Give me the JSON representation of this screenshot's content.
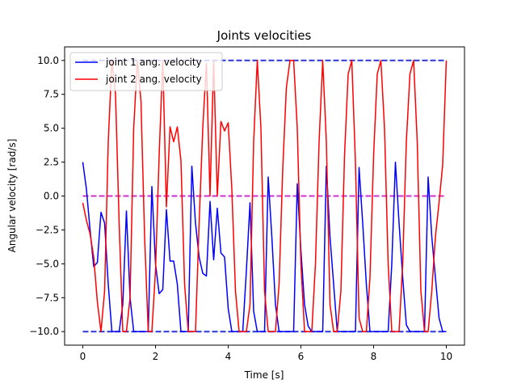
{
  "chart_data": {
    "type": "line",
    "title": "Joints velocities",
    "xlabel": "Time [s]",
    "ylabel": "Angular velocity [rad/s]",
    "xlim": [
      -0.5,
      10.5
    ],
    "ylim": [
      -11.0,
      11.0
    ],
    "xticks": [
      0,
      2,
      4,
      6,
      8,
      10
    ],
    "xtick_labels": [
      "0",
      "2",
      "4",
      "6",
      "8",
      "10"
    ],
    "yticks": [
      -10.0,
      -7.5,
      -5.0,
      -2.5,
      0.0,
      2.5,
      5.0,
      7.5,
      10.0
    ],
    "ytick_labels": [
      "−10.0",
      "−7.5",
      "−5.0",
      "−2.5",
      "0.0",
      "2.5",
      "5.0",
      "7.5",
      "10.0"
    ],
    "grid": false,
    "legend_position": "top-left",
    "reference_lines": [
      {
        "y": 10.0,
        "color": "#2b36d9",
        "style": "dashed"
      },
      {
        "y": -10.0,
        "color": "#2b36d9",
        "style": "dashed"
      },
      {
        "y": 0.0,
        "color": "#cc33cc",
        "style": "dashed"
      }
    ],
    "series": [
      {
        "name": "joint 1 ang. velocity",
        "color": "#0000ff",
        "x": [
          0.0,
          0.1,
          0.2,
          0.3,
          0.4,
          0.5,
          0.6,
          0.7,
          0.8,
          0.9,
          1.0,
          1.1,
          1.2,
          1.3,
          1.4,
          1.5,
          1.6,
          1.7,
          1.8,
          1.9,
          2.0,
          2.1,
          2.2,
          2.3,
          2.4,
          2.5,
          2.6,
          2.7,
          2.8,
          2.9,
          3.0,
          3.1,
          3.2,
          3.3,
          3.4,
          3.5,
          3.6,
          3.7,
          3.8,
          3.9,
          4.0,
          4.1,
          4.2,
          4.3,
          4.4,
          4.5,
          4.6,
          4.7,
          4.8,
          4.9,
          5.0,
          5.1,
          5.2,
          5.3,
          5.4,
          5.5,
          5.6,
          5.7,
          5.8,
          5.9,
          6.0,
          6.1,
          6.2,
          6.3,
          6.4,
          6.5,
          6.6,
          6.7,
          6.8,
          6.9,
          7.0,
          7.1,
          7.2,
          7.3,
          7.4,
          7.5,
          7.6,
          7.7,
          7.8,
          7.9,
          8.0,
          8.1,
          8.2,
          8.3,
          8.4,
          8.5,
          8.6,
          8.7,
          8.8,
          8.9,
          9.0,
          9.1,
          9.2,
          9.3,
          9.4,
          9.5,
          9.6,
          9.7,
          9.8,
          9.9,
          10.0
        ],
        "y": [
          2.5,
          0.5,
          -2.5,
          -5.2,
          -4.9,
          -1.2,
          -2.0,
          -6.5,
          -10.0,
          -10.0,
          -10.0,
          -8.0,
          -1.1,
          -7.5,
          -10.0,
          -10.0,
          -10.0,
          -10.0,
          -10.0,
          0.7,
          -5.0,
          -7.2,
          -6.9,
          -1.0,
          -4.8,
          -4.8,
          -6.5,
          -10.0,
          -10.0,
          -10.0,
          2.2,
          -2.0,
          -4.5,
          -5.7,
          -5.9,
          -0.4,
          -4.7,
          -0.9,
          -4.2,
          -4.5,
          -8.3,
          -10.0,
          -10.0,
          -10.0,
          -10.0,
          -5.5,
          -0.5,
          -8.5,
          -10.0,
          -10.0,
          -10.0,
          1.4,
          -3.0,
          -8.0,
          -10.0,
          -10.0,
          -10.0,
          -10.0,
          -10.0,
          0.9,
          -4.0,
          -8.0,
          -9.6,
          -10.0,
          -10.0,
          -10.0,
          -10.0,
          2.2,
          -3.0,
          -6.5,
          -10.0,
          -10.0,
          -10.0,
          -10.0,
          -10.0,
          -10.0,
          2.1,
          -2.0,
          -6.5,
          -10.0,
          -10.0,
          -10.0,
          -10.0,
          -10.0,
          -10.0,
          -5.0,
          2.5,
          -2.0,
          -6.0,
          -9.5,
          -10.0,
          -10.0,
          -10.0,
          -10.0,
          -10.0,
          1.4,
          -3.0,
          -6.0,
          -9.0,
          -10.0,
          -10.0
        ]
      },
      {
        "name": "joint 2 ang. velocity",
        "color": "#ff0000",
        "x": [
          0.0,
          0.1,
          0.2,
          0.3,
          0.4,
          0.5,
          0.6,
          0.7,
          0.8,
          0.9,
          1.0,
          1.1,
          1.2,
          1.3,
          1.4,
          1.5,
          1.6,
          1.7,
          1.8,
          1.9,
          2.0,
          2.1,
          2.2,
          2.3,
          2.4,
          2.5,
          2.6,
          2.7,
          2.8,
          2.9,
          3.0,
          3.1,
          3.2,
          3.3,
          3.4,
          3.5,
          3.6,
          3.7,
          3.8,
          3.9,
          4.0,
          4.1,
          4.2,
          4.3,
          4.4,
          4.5,
          4.6,
          4.7,
          4.8,
          4.9,
          5.0,
          5.1,
          5.2,
          5.3,
          5.4,
          5.5,
          5.6,
          5.7,
          5.8,
          5.9,
          6.0,
          6.1,
          6.2,
          6.3,
          6.4,
          6.5,
          6.6,
          6.7,
          6.8,
          6.9,
          7.0,
          7.1,
          7.2,
          7.3,
          7.4,
          7.5,
          7.6,
          7.7,
          7.8,
          7.9,
          8.0,
          8.1,
          8.2,
          8.3,
          8.4,
          8.5,
          8.6,
          8.7,
          8.8,
          8.9,
          9.0,
          9.1,
          9.2,
          9.3,
          9.4,
          9.5,
          9.6,
          9.7,
          9.8,
          9.9,
          10.0
        ],
        "y": [
          -0.5,
          -1.8,
          -2.8,
          -4.5,
          -7.8,
          -10.0,
          -7.0,
          4.0,
          10.0,
          7.5,
          -2.0,
          -10.0,
          -10.0,
          -7.5,
          5.0,
          10.0,
          7.0,
          -3.0,
          -10.0,
          -10.0,
          -5.5,
          3.0,
          10.0,
          -0.8,
          5.1,
          4.0,
          5.1,
          2.6,
          -6.5,
          -10.0,
          -10.0,
          -10.0,
          -2.0,
          5.0,
          9.8,
          0.0,
          10.0,
          0.0,
          5.5,
          4.8,
          5.4,
          0.5,
          -7.0,
          -10.0,
          -10.0,
          -10.0,
          -8.0,
          4.0,
          10.0,
          5.0,
          -7.0,
          -10.0,
          -10.0,
          -10.0,
          -6.5,
          2.0,
          8.0,
          10.0,
          10.0,
          5.0,
          -5.0,
          -10.0,
          -10.0,
          -10.0,
          -5.0,
          4.0,
          10.0,
          4.0,
          -8.0,
          -10.0,
          -10.0,
          -7.0,
          3.0,
          9.0,
          10.0,
          2.5,
          -9.0,
          -10.0,
          -10.0,
          -6.0,
          3.0,
          9.0,
          10.0,
          5.0,
          -5.0,
          -10.0,
          -10.0,
          -10.0,
          -5.0,
          4.0,
          9.0,
          10.0,
          4.0,
          -7.0,
          -10.0,
          -10.0,
          -7.0,
          -3.0,
          -0.5,
          2.3,
          10.0
        ]
      }
    ]
  }
}
